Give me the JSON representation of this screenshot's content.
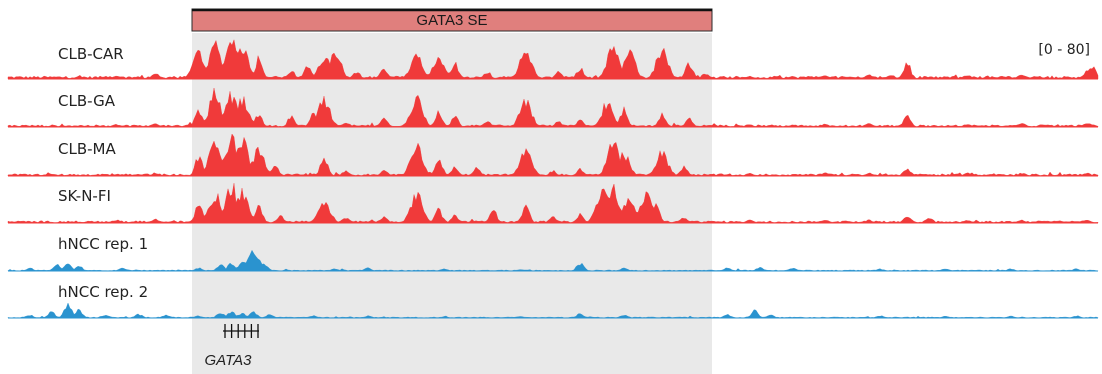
{
  "chart_data": {
    "type": "area",
    "region_label": "GATA3 SE",
    "data_range_label": "[0 - 80]",
    "ylim": [
      0,
      80
    ],
    "colors": {
      "red_track": "#f03a3a",
      "blue_track": "#2a93cf",
      "se_bar": "#e07f7d",
      "highlight": "#e9e9e9"
    },
    "gene": {
      "name": "GATA3",
      "exon_count": 6
    },
    "tracks": [
      {
        "name": "CLB-CAR",
        "color": "red",
        "baseline": 4,
        "peaks": [
          [
            0.1,
            6
          ],
          [
            0.135,
            12
          ],
          [
            0.175,
            50
          ],
          [
            0.19,
            70
          ],
          [
            0.205,
            72
          ],
          [
            0.215,
            66
          ],
          [
            0.23,
            40
          ],
          [
            0.26,
            16
          ],
          [
            0.275,
            28
          ],
          [
            0.29,
            42
          ],
          [
            0.3,
            52
          ],
          [
            0.32,
            14
          ],
          [
            0.345,
            22
          ],
          [
            0.375,
            50
          ],
          [
            0.395,
            42
          ],
          [
            0.41,
            30
          ],
          [
            0.44,
            14
          ],
          [
            0.475,
            54
          ],
          [
            0.505,
            14
          ],
          [
            0.525,
            22
          ],
          [
            0.555,
            60
          ],
          [
            0.57,
            52
          ],
          [
            0.6,
            56
          ],
          [
            0.625,
            32
          ],
          [
            0.64,
            12
          ],
          [
            0.68,
            6
          ],
          [
            0.75,
            8
          ],
          [
            0.79,
            10
          ],
          [
            0.81,
            10
          ],
          [
            0.825,
            40
          ],
          [
            0.88,
            8
          ],
          [
            0.93,
            10
          ],
          [
            0.99,
            18
          ],
          [
            0.995,
            30
          ]
        ]
      },
      {
        "name": "CLB-GA",
        "color": "red",
        "baseline": 3,
        "peaks": [
          [
            0.1,
            5
          ],
          [
            0.135,
            8
          ],
          [
            0.175,
            34
          ],
          [
            0.19,
            66
          ],
          [
            0.205,
            62
          ],
          [
            0.215,
            54
          ],
          [
            0.23,
            24
          ],
          [
            0.26,
            22
          ],
          [
            0.28,
            24
          ],
          [
            0.29,
            52
          ],
          [
            0.31,
            10
          ],
          [
            0.345,
            16
          ],
          [
            0.375,
            56
          ],
          [
            0.395,
            30
          ],
          [
            0.41,
            20
          ],
          [
            0.44,
            10
          ],
          [
            0.475,
            50
          ],
          [
            0.505,
            10
          ],
          [
            0.525,
            14
          ],
          [
            0.55,
            48
          ],
          [
            0.565,
            34
          ],
          [
            0.6,
            24
          ],
          [
            0.625,
            16
          ],
          [
            0.68,
            6
          ],
          [
            0.75,
            6
          ],
          [
            0.79,
            8
          ],
          [
            0.825,
            26
          ],
          [
            0.88,
            6
          ],
          [
            0.93,
            8
          ],
          [
            0.99,
            10
          ]
        ]
      },
      {
        "name": "CLB-MA",
        "color": "red",
        "baseline": 3,
        "peaks": [
          [
            0.1,
            4
          ],
          [
            0.135,
            6
          ],
          [
            0.175,
            40
          ],
          [
            0.19,
            76
          ],
          [
            0.205,
            74
          ],
          [
            0.215,
            70
          ],
          [
            0.23,
            52
          ],
          [
            0.245,
            20
          ],
          [
            0.29,
            38
          ],
          [
            0.31,
            10
          ],
          [
            0.345,
            12
          ],
          [
            0.375,
            60
          ],
          [
            0.395,
            38
          ],
          [
            0.41,
            20
          ],
          [
            0.43,
            16
          ],
          [
            0.475,
            54
          ],
          [
            0.5,
            10
          ],
          [
            0.525,
            14
          ],
          [
            0.555,
            64
          ],
          [
            0.565,
            42
          ],
          [
            0.6,
            46
          ],
          [
            0.62,
            18
          ],
          [
            0.68,
            5
          ],
          [
            0.75,
            6
          ],
          [
            0.79,
            6
          ],
          [
            0.825,
            18
          ],
          [
            0.88,
            6
          ],
          [
            0.93,
            6
          ],
          [
            0.99,
            6
          ]
        ]
      },
      {
        "name": "SK-N-FI",
        "color": "red",
        "baseline": 3,
        "peaks": [
          [
            0.1,
            6
          ],
          [
            0.135,
            8
          ],
          [
            0.175,
            36
          ],
          [
            0.19,
            56
          ],
          [
            0.205,
            74
          ],
          [
            0.215,
            60
          ],
          [
            0.23,
            36
          ],
          [
            0.25,
            14
          ],
          [
            0.29,
            44
          ],
          [
            0.31,
            10
          ],
          [
            0.345,
            12
          ],
          [
            0.375,
            58
          ],
          [
            0.395,
            26
          ],
          [
            0.41,
            16
          ],
          [
            0.445,
            28
          ],
          [
            0.475,
            34
          ],
          [
            0.5,
            12
          ],
          [
            0.525,
            18
          ],
          [
            0.545,
            62
          ],
          [
            0.555,
            70
          ],
          [
            0.57,
            46
          ],
          [
            0.585,
            58
          ],
          [
            0.595,
            34
          ],
          [
            0.62,
            10
          ],
          [
            0.68,
            6
          ],
          [
            0.75,
            6
          ],
          [
            0.79,
            6
          ],
          [
            0.825,
            20
          ],
          [
            0.845,
            12
          ],
          [
            0.88,
            6
          ],
          [
            0.93,
            6
          ],
          [
            0.99,
            6
          ]
        ]
      },
      {
        "name": "hNCC rep. 1",
        "color": "blue",
        "baseline": 2,
        "peaks": [
          [
            0.02,
            8
          ],
          [
            0.045,
            18
          ],
          [
            0.055,
            22
          ],
          [
            0.065,
            14
          ],
          [
            0.105,
            10
          ],
          [
            0.175,
            8
          ],
          [
            0.195,
            18
          ],
          [
            0.205,
            22
          ],
          [
            0.215,
            26
          ],
          [
            0.225,
            50
          ],
          [
            0.235,
            20
          ],
          [
            0.3,
            6
          ],
          [
            0.33,
            8
          ],
          [
            0.4,
            6
          ],
          [
            0.47,
            4
          ],
          [
            0.525,
            22
          ],
          [
            0.565,
            8
          ],
          [
            0.66,
            8
          ],
          [
            0.69,
            10
          ],
          [
            0.72,
            8
          ],
          [
            0.8,
            6
          ],
          [
            0.86,
            6
          ],
          [
            0.92,
            6
          ],
          [
            0.98,
            6
          ]
        ]
      },
      {
        "name": "hNCC rep. 2",
        "color": "blue",
        "baseline": 2,
        "peaks": [
          [
            0.02,
            8
          ],
          [
            0.04,
            16
          ],
          [
            0.055,
            40
          ],
          [
            0.065,
            22
          ],
          [
            0.09,
            8
          ],
          [
            0.12,
            10
          ],
          [
            0.145,
            8
          ],
          [
            0.175,
            6
          ],
          [
            0.195,
            16
          ],
          [
            0.205,
            18
          ],
          [
            0.215,
            14
          ],
          [
            0.225,
            18
          ],
          [
            0.24,
            10
          ],
          [
            0.28,
            6
          ],
          [
            0.33,
            6
          ],
          [
            0.4,
            4
          ],
          [
            0.47,
            4
          ],
          [
            0.525,
            12
          ],
          [
            0.565,
            8
          ],
          [
            0.66,
            10
          ],
          [
            0.685,
            20
          ],
          [
            0.7,
            8
          ],
          [
            0.8,
            6
          ],
          [
            0.86,
            6
          ],
          [
            0.92,
            6
          ],
          [
            0.98,
            6
          ]
        ]
      }
    ]
  }
}
